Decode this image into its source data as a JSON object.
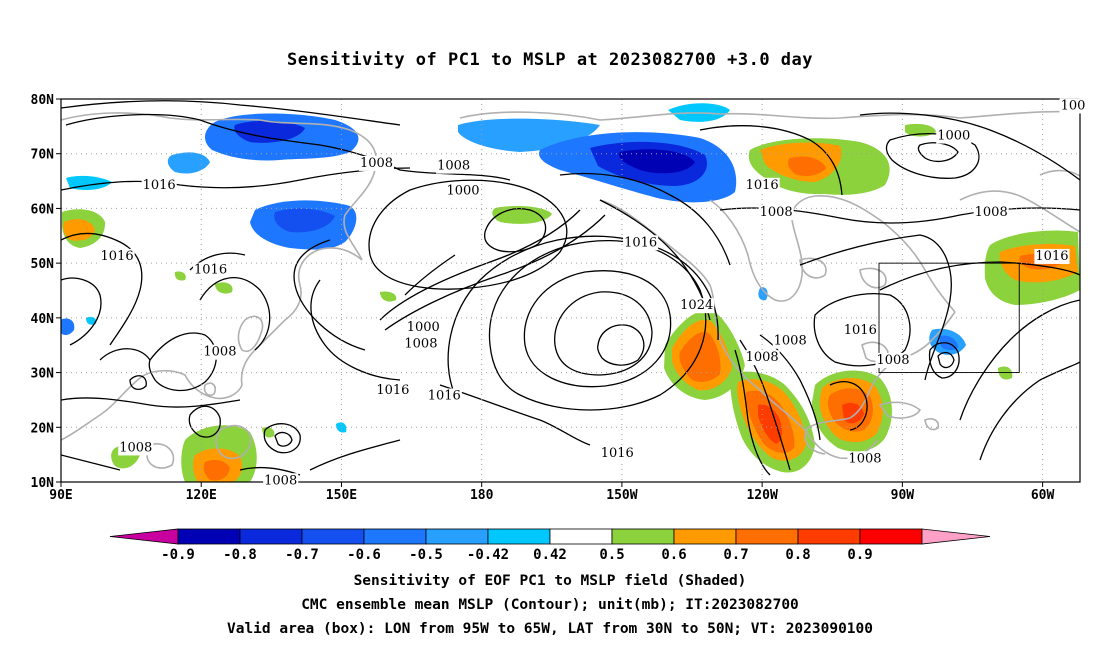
{
  "title": "Sensitivity of PC1 to MSLP at 2023082700 +3.0 day",
  "map": {
    "lat_ticks": [
      "80N",
      "70N",
      "60N",
      "50N",
      "40N",
      "30N",
      "20N",
      "10N"
    ],
    "lon_ticks": [
      "90E",
      "120E",
      "150E",
      "180",
      "150W",
      "120W",
      "90W",
      "60W"
    ],
    "lon_range": [
      "90E",
      "52W"
    ],
    "lat_range": [
      "10N",
      "80N"
    ],
    "grid": "dotted",
    "valid_box": {
      "lon": [
        "95W",
        "65W"
      ],
      "lat": [
        "30N",
        "50N"
      ]
    },
    "contour_labels": [
      {
        "text": "1008",
        "lat": 68.5,
        "lon": 157.5
      },
      {
        "text": "1016",
        "lat": 64.5,
        "lon": 111
      },
      {
        "text": "1008",
        "lat": 68,
        "lon": 174
      },
      {
        "text": "1000",
        "lat": 63.5,
        "lon": 176
      },
      {
        "text": "1016",
        "lat": 64.5,
        "lon": -120
      },
      {
        "text": "1000",
        "lat": 73.5,
        "lon": -79
      },
      {
        "text": "1008",
        "lat": 59.5,
        "lon": -117
      },
      {
        "text": "1008",
        "lat": 59.5,
        "lon": -71
      },
      {
        "text": "1016",
        "lat": 54,
        "lon": -146
      },
      {
        "text": "1024",
        "lat": 42.5,
        "lon": -134
      },
      {
        "text": "1016",
        "lat": 51.5,
        "lon": 102
      },
      {
        "text": "1016",
        "lat": 49,
        "lon": 122
      },
      {
        "text": "1000",
        "lat": 38.5,
        "lon": 167.5
      },
      {
        "text": "1008",
        "lat": 35.5,
        "lon": 167
      },
      {
        "text": "1008",
        "lat": 34,
        "lon": 124
      },
      {
        "text": "1016",
        "lat": 27,
        "lon": 161
      },
      {
        "text": "1016",
        "lat": 26,
        "lon": 172
      },
      {
        "text": "1008",
        "lat": 16.5,
        "lon": 106
      },
      {
        "text": "1008",
        "lat": 10.5,
        "lon": 137
      },
      {
        "text": "1016",
        "lat": 15.5,
        "lon": -151
      },
      {
        "text": "1008",
        "lat": 36,
        "lon": -114
      },
      {
        "text": "1008",
        "lat": 33,
        "lon": -120
      },
      {
        "text": "1016",
        "lat": 38,
        "lon": -99
      },
      {
        "text": "1008",
        "lat": 32.5,
        "lon": -92
      },
      {
        "text": "1008",
        "lat": 14.5,
        "lon": -98
      },
      {
        "text": "1016",
        "lat": 51.5,
        "lon": -58
      },
      {
        "text": "100",
        "lat": 79,
        "lon": -53.5
      }
    ]
  },
  "colorbar": {
    "labels": [
      "-0.9",
      "-0.8",
      "-0.7",
      "-0.6",
      "-0.5",
      "-0.42",
      "0.42",
      "0.5",
      "0.6",
      "0.7",
      "0.8",
      "0.9"
    ],
    "colors": [
      "#c800a0",
      "#0000b4",
      "#0a28dc",
      "#1450f0",
      "#1e78ff",
      "#28a0ff",
      "#00c8ff",
      "#ffffff",
      "#8cd23c",
      "#ff9b00",
      "#ff6e00",
      "#ff3c00",
      "#ff0000",
      "#ffa0c8"
    ]
  },
  "captions": [
    "Sensitivity of EOF PC1 to MSLP field (Shaded)",
    "CMC ensemble mean MSLP (Contour); unit(mb); IT:2023082700",
    "Valid area (box): LON from 95W to 65W, LAT from 30N to 50N; VT: 2023090100"
  ]
}
